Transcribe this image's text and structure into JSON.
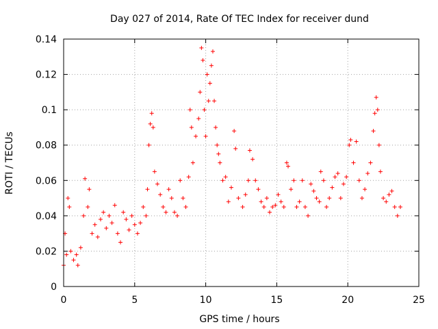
{
  "chart_data": {
    "type": "scatter",
    "title": "Day 027 of 2014, Rate Of TEC Index for receiver dund",
    "xlabel": "GPS time / hours",
    "ylabel": "ROTI / TECUs",
    "xlim": [
      0,
      25
    ],
    "ylim": [
      0,
      0.14
    ],
    "x_ticks": [
      0,
      5,
      10,
      15,
      20,
      25
    ],
    "y_ticks": [
      0,
      0.02,
      0.04,
      0.06,
      0.08,
      0.1,
      0.12,
      0.14
    ],
    "x_tick_labels": [
      "0",
      "5",
      "10",
      "15",
      "20",
      "25"
    ],
    "y_tick_labels": [
      "0",
      "0.02",
      "0.04",
      "0.06",
      "0.08",
      "0.1",
      "0.12",
      "0.14"
    ],
    "grid": true,
    "marker": "+",
    "color": "#ff0000",
    "series": [
      {
        "name": "ROTI",
        "points": [
          [
            0.0,
            0.012
          ],
          [
            0.1,
            0.03
          ],
          [
            0.2,
            0.018
          ],
          [
            0.3,
            0.05
          ],
          [
            0.4,
            0.045
          ],
          [
            0.5,
            0.02
          ],
          [
            0.7,
            0.015
          ],
          [
            0.9,
            0.018
          ],
          [
            1.0,
            0.012
          ],
          [
            1.2,
            0.022
          ],
          [
            1.4,
            0.04
          ],
          [
            1.5,
            0.061
          ],
          [
            1.7,
            0.045
          ],
          [
            1.8,
            0.055
          ],
          [
            2.0,
            0.03
          ],
          [
            2.2,
            0.035
          ],
          [
            2.4,
            0.028
          ],
          [
            2.6,
            0.038
          ],
          [
            2.8,
            0.042
          ],
          [
            3.0,
            0.033
          ],
          [
            3.2,
            0.04
          ],
          [
            3.4,
            0.036
          ],
          [
            3.6,
            0.046
          ],
          [
            3.8,
            0.03
          ],
          [
            4.0,
            0.025
          ],
          [
            4.2,
            0.042
          ],
          [
            4.4,
            0.038
          ],
          [
            4.6,
            0.032
          ],
          [
            4.8,
            0.04
          ],
          [
            5.0,
            0.035
          ],
          [
            5.2,
            0.03
          ],
          [
            5.4,
            0.036
          ],
          [
            5.6,
            0.045
          ],
          [
            5.8,
            0.04
          ],
          [
            5.9,
            0.055
          ],
          [
            6.0,
            0.08
          ],
          [
            6.1,
            0.092
          ],
          [
            6.2,
            0.098
          ],
          [
            6.3,
            0.09
          ],
          [
            6.4,
            0.065
          ],
          [
            6.6,
            0.058
          ],
          [
            6.8,
            0.052
          ],
          [
            7.0,
            0.045
          ],
          [
            7.2,
            0.042
          ],
          [
            7.4,
            0.055
          ],
          [
            7.6,
            0.05
          ],
          [
            7.8,
            0.042
          ],
          [
            8.0,
            0.04
          ],
          [
            8.2,
            0.06
          ],
          [
            8.4,
            0.05
          ],
          [
            8.6,
            0.045
          ],
          [
            8.8,
            0.062
          ],
          [
            8.9,
            0.1
          ],
          [
            9.0,
            0.09
          ],
          [
            9.1,
            0.07
          ],
          [
            9.3,
            0.085
          ],
          [
            9.5,
            0.095
          ],
          [
            9.6,
            0.11
          ],
          [
            9.7,
            0.135
          ],
          [
            9.8,
            0.128
          ],
          [
            9.9,
            0.1
          ],
          [
            10.0,
            0.085
          ],
          [
            10.1,
            0.12
          ],
          [
            10.2,
            0.105
          ],
          [
            10.3,
            0.115
          ],
          [
            10.4,
            0.125
          ],
          [
            10.5,
            0.133
          ],
          [
            10.6,
            0.105
          ],
          [
            10.7,
            0.09
          ],
          [
            10.8,
            0.08
          ],
          [
            10.9,
            0.075
          ],
          [
            11.0,
            0.07
          ],
          [
            11.2,
            0.06
          ],
          [
            11.4,
            0.062
          ],
          [
            11.6,
            0.048
          ],
          [
            11.8,
            0.056
          ],
          [
            12.0,
            0.088
          ],
          [
            12.1,
            0.078
          ],
          [
            12.3,
            0.05
          ],
          [
            12.6,
            0.045
          ],
          [
            12.8,
            0.052
          ],
          [
            13.0,
            0.06
          ],
          [
            13.1,
            0.077
          ],
          [
            13.3,
            0.072
          ],
          [
            13.5,
            0.06
          ],
          [
            13.7,
            0.055
          ],
          [
            13.9,
            0.048
          ],
          [
            14.1,
            0.045
          ],
          [
            14.3,
            0.05
          ],
          [
            14.5,
            0.042
          ],
          [
            14.7,
            0.045
          ],
          [
            14.9,
            0.046
          ],
          [
            15.1,
            0.052
          ],
          [
            15.3,
            0.048
          ],
          [
            15.5,
            0.045
          ],
          [
            15.7,
            0.07
          ],
          [
            15.8,
            0.068
          ],
          [
            16.0,
            0.055
          ],
          [
            16.2,
            0.06
          ],
          [
            16.4,
            0.045
          ],
          [
            16.6,
            0.048
          ],
          [
            16.8,
            0.06
          ],
          [
            17.0,
            0.045
          ],
          [
            17.2,
            0.04
          ],
          [
            17.4,
            0.058
          ],
          [
            17.6,
            0.054
          ],
          [
            17.8,
            0.05
          ],
          [
            18.0,
            0.048
          ],
          [
            18.1,
            0.065
          ],
          [
            18.3,
            0.06
          ],
          [
            18.5,
            0.045
          ],
          [
            18.7,
            0.05
          ],
          [
            18.9,
            0.056
          ],
          [
            19.1,
            0.062
          ],
          [
            19.3,
            0.064
          ],
          [
            19.5,
            0.05
          ],
          [
            19.7,
            0.058
          ],
          [
            19.9,
            0.062
          ],
          [
            20.1,
            0.08
          ],
          [
            20.2,
            0.083
          ],
          [
            20.4,
            0.07
          ],
          [
            20.6,
            0.082
          ],
          [
            20.8,
            0.06
          ],
          [
            21.0,
            0.05
          ],
          [
            21.2,
            0.055
          ],
          [
            21.4,
            0.064
          ],
          [
            21.6,
            0.07
          ],
          [
            21.8,
            0.088
          ],
          [
            21.9,
            0.098
          ],
          [
            22.0,
            0.107
          ],
          [
            22.1,
            0.1
          ],
          [
            22.2,
            0.08
          ],
          [
            22.3,
            0.065
          ],
          [
            22.5,
            0.05
          ],
          [
            22.7,
            0.048
          ],
          [
            22.9,
            0.052
          ],
          [
            23.1,
            0.054
          ],
          [
            23.3,
            0.045
          ],
          [
            23.5,
            0.04
          ],
          [
            23.7,
            0.045
          ]
        ]
      }
    ]
  }
}
